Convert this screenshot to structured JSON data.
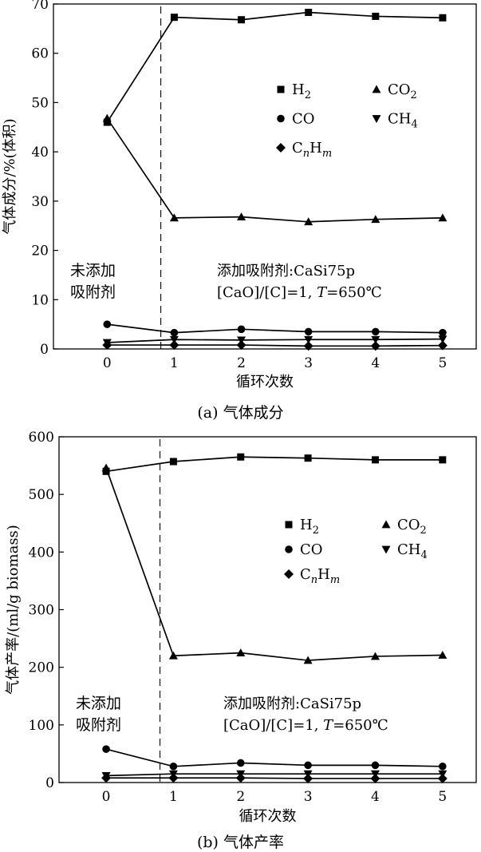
{
  "chart_data": [
    {
      "type": "line",
      "caption": "(a) 气体成分",
      "xlabel": "循环次数",
      "ylabel": "气体成分/%(体积)",
      "x": [
        0,
        1,
        2,
        3,
        4,
        5
      ],
      "xlim": [
        -0.8,
        5.5
      ],
      "ylim": [
        0,
        70
      ],
      "yticks": [
        0,
        10,
        20,
        30,
        40,
        50,
        60,
        70
      ],
      "divider_x": 0.8,
      "annotation_left": [
        "未添加",
        "吸附剂"
      ],
      "annotation_right": [
        "添加吸附剂:CaSi75p",
        "[CaO]/[C]=1, T=650℃"
      ],
      "series": [
        {
          "name": "H2",
          "marker": "square",
          "values": [
            46,
            67.3,
            66.8,
            68.3,
            67.5,
            67.2
          ]
        },
        {
          "name": "CO2",
          "marker": "triangle-up",
          "values": [
            46.8,
            26.6,
            26.8,
            25.8,
            26.3,
            26.6
          ]
        },
        {
          "name": "CO",
          "marker": "circle",
          "values": [
            5,
            3.3,
            4,
            3.5,
            3.5,
            3.3
          ]
        },
        {
          "name": "CH4",
          "marker": "triangle-down",
          "values": [
            1.3,
            1.9,
            1.8,
            1.9,
            1.9,
            2.0
          ]
        },
        {
          "name": "CnHm",
          "marker": "diamond",
          "values": [
            0.8,
            0.8,
            0.8,
            0.6,
            0.6,
            0.7
          ]
        }
      ]
    },
    {
      "type": "line",
      "caption": "(b) 气体产率",
      "xlabel": "循环次数",
      "ylabel": "气体产率/(ml/g biomass)",
      "x": [
        0,
        1,
        2,
        3,
        4,
        5
      ],
      "xlim": [
        -0.7,
        5.5
      ],
      "ylim": [
        0,
        600
      ],
      "yticks": [
        0,
        100,
        200,
        300,
        400,
        500,
        600
      ],
      "divider_x": 0.8,
      "annotation_left": [
        "未添加",
        "吸附剂"
      ],
      "annotation_right": [
        "添加吸附剂:CaSi75p",
        "[CaO]/[C]=1, T=650℃"
      ],
      "series": [
        {
          "name": "H2",
          "marker": "square",
          "values": [
            540,
            557,
            565,
            563,
            560,
            560
          ]
        },
        {
          "name": "CO2",
          "marker": "triangle-up",
          "values": [
            546,
            220,
            225,
            212,
            219,
            221
          ]
        },
        {
          "name": "CO",
          "marker": "circle",
          "values": [
            58,
            28,
            34,
            30,
            30,
            28
          ]
        },
        {
          "name": "CH4",
          "marker": "triangle-down",
          "values": [
            12,
            15,
            15,
            15,
            15,
            15
          ]
        },
        {
          "name": "CnHm",
          "marker": "diamond",
          "values": [
            8,
            8,
            8,
            7,
            7,
            7
          ]
        }
      ]
    }
  ]
}
